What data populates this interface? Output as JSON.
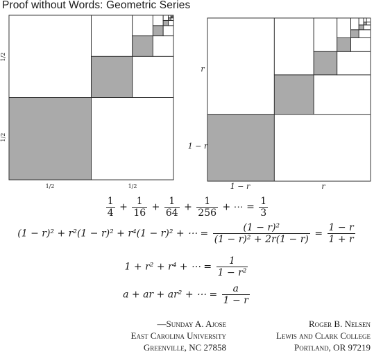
{
  "title": "Proof without Words: Geometric Series",
  "left_figure": {
    "side_label_top": "1/2",
    "side_label_bottom": "1/2",
    "bottom_label_left": "1/2",
    "bottom_label_right": "1/2"
  },
  "right_figure": {
    "side_label_top": "r",
    "side_label_bottom": "1 − r",
    "bottom_label_left": "1 − r",
    "bottom_label_right": "r"
  },
  "equations": {
    "eq1": {
      "t1_num": "1",
      "t1_den": "4",
      "t2_num": "1",
      "t2_den": "16",
      "t3_num": "1",
      "t3_den": "64",
      "t4_num": "1",
      "t4_den": "256",
      "tail": "+ ⋯ =",
      "rhs_num": "1",
      "rhs_den": "3"
    },
    "eq2": {
      "lhs": "(1 − r)² + r²(1 − r)² + r⁴(1 − r)² + ⋯ =",
      "mid_num": "(1 − r)²",
      "mid_den": "(1 − r)² + 2r(1 − r)",
      "rhs_num": "1 − r",
      "rhs_den": "1 + r"
    },
    "eq3": {
      "lhs": "1 + r² + r⁴ + ⋯ =",
      "rhs_num": "1",
      "rhs_den": "1 − r²"
    },
    "eq4": {
      "lhs": "a + ar + ar² + ⋯ =",
      "rhs_num": "a",
      "rhs_den": "1 − r"
    }
  },
  "author1": {
    "name": "—Sunday A. Ajose",
    "affiliation": "East Carolina University",
    "address": "Greenville, NC 27858"
  },
  "author2": {
    "name": "Roger B. Nelsen",
    "affiliation": "Lewis and Clark College",
    "address": "Portland, OR 97219"
  },
  "colors": {
    "shade": "#aaaaaa",
    "line": "#2a2a2a"
  }
}
